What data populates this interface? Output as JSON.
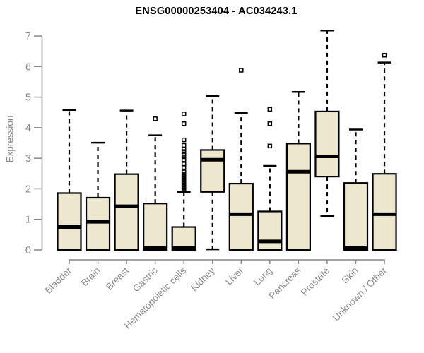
{
  "colors": {
    "background": "#ffffff",
    "box_fill": "#ECE7CD",
    "box_border": "#000000",
    "median": "#000000",
    "whisker": "#000000",
    "outlier": "#000000",
    "axis": "#878787",
    "tick_label": "#8a8a8a",
    "title_text": "#000000"
  },
  "chart_data": {
    "type": "boxplot",
    "title": "ENSG00000253404 - AC034243.1",
    "xlabel": "",
    "ylabel": "Expression",
    "ylim": [
      0,
      7
    ],
    "yticks": [
      0,
      1,
      2,
      3,
      4,
      5,
      6,
      7
    ],
    "grid": false,
    "legend": "none",
    "x_label_rotation_deg": 45,
    "categories": [
      "Bladder",
      "Brain",
      "Breast",
      "Gastric",
      "Hematopoietic cells",
      "Kidney",
      "Liver",
      "Lung",
      "Pancreas",
      "Prostate",
      "Skin",
      "Unknown / Other"
    ],
    "series": [
      {
        "category": "Bladder",
        "whisker_low": 0,
        "q1": 0,
        "median": 0.75,
        "q3": 1.86,
        "whisker_high": 4.58,
        "outliers": []
      },
      {
        "category": "Brain",
        "whisker_low": 0,
        "q1": 0,
        "median": 0.92,
        "q3": 1.71,
        "whisker_high": 3.51,
        "outliers": []
      },
      {
        "category": "Breast",
        "whisker_low": 0,
        "q1": 0,
        "median": 1.43,
        "q3": 2.48,
        "whisker_high": 4.56,
        "outliers": []
      },
      {
        "category": "Gastric",
        "whisker_low": 0,
        "q1": 0,
        "median": 0.06,
        "q3": 1.52,
        "whisker_high": 3.75,
        "outliers": [
          4.29
        ]
      },
      {
        "category": "Hematopoietic cells",
        "whisker_low": 0,
        "q1": 0,
        "median": 0.06,
        "q3": 0.75,
        "whisker_high": 1.9,
        "outliers": [
          1.95,
          2.0,
          2.04,
          2.08,
          2.12,
          2.16,
          2.2,
          2.24,
          2.28,
          2.32,
          2.36,
          2.4,
          2.44,
          2.48,
          2.55,
          2.7,
          2.81,
          2.95,
          3.05,
          3.13,
          3.22,
          3.3,
          3.42,
          3.6,
          4.13,
          4.45
        ]
      },
      {
        "category": "Kidney",
        "whisker_low": 0.02,
        "q1": 1.9,
        "median": 2.95,
        "q3": 3.27,
        "whisker_high": 5.03,
        "outliers": []
      },
      {
        "category": "Liver",
        "whisker_low": 0,
        "q1": 0,
        "median": 1.17,
        "q3": 2.17,
        "whisker_high": 4.48,
        "outliers": [
          5.88
        ]
      },
      {
        "category": "Lung",
        "whisker_low": 0,
        "q1": 0,
        "median": 0.28,
        "q3": 1.26,
        "whisker_high": 2.75,
        "outliers": [
          3.4,
          4.13,
          4.6
        ]
      },
      {
        "category": "Pancreas",
        "whisker_low": 0,
        "q1": 0,
        "median": 2.56,
        "q3": 3.48,
        "whisker_high": 5.17,
        "outliers": []
      },
      {
        "category": "Prostate",
        "whisker_low": 1.11,
        "q1": 2.4,
        "median": 3.06,
        "q3": 4.53,
        "whisker_high": 7.18,
        "outliers": []
      },
      {
        "category": "Skin",
        "whisker_low": 0,
        "q1": 0,
        "median": 0.06,
        "q3": 2.19,
        "whisker_high": 3.94,
        "outliers": []
      },
      {
        "category": "Unknown / Other",
        "whisker_low": 0,
        "q1": 0,
        "median": 1.17,
        "q3": 2.49,
        "whisker_high": 6.13,
        "outliers": [
          6.37
        ]
      }
    ]
  }
}
